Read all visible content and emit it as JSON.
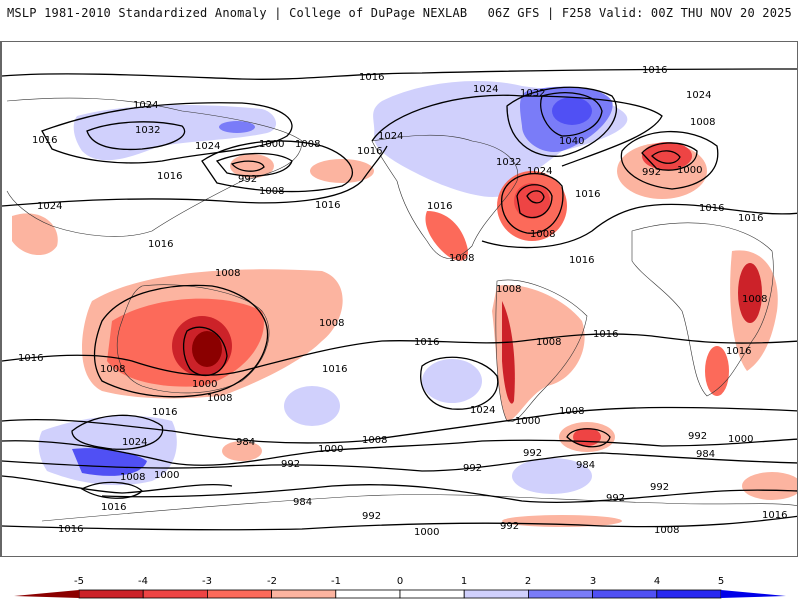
{
  "header": {
    "title_left": "MSLP 1981-2010 Standardized Anomaly | College of DuPage NEXLAB",
    "title_right": "06Z GFS | F258 Valid: 00Z THU NOV 20 2025"
  },
  "map": {
    "projection": "global cylindrical, Pacific-centered",
    "field_shaded": "MSLP standardized anomaly",
    "field_contoured": "MSLP (hPa)",
    "contour_labels": [
      {
        "text": "1016",
        "region": "north-pacific-arctic"
      },
      {
        "text": "1016",
        "region": "north-atlantic-arctic"
      },
      {
        "text": "1024",
        "region": "siberia-north"
      },
      {
        "text": "1032",
        "region": "siberia"
      },
      {
        "text": "1024",
        "region": "east-siberia"
      },
      {
        "text": "1016",
        "region": "west-russia"
      },
      {
        "text": "1016",
        "region": "japan"
      },
      {
        "text": "1024",
        "region": "tibet"
      },
      {
        "text": "1016",
        "region": "south-china-sea"
      },
      {
        "text": "1000",
        "region": "bering-sea"
      },
      {
        "text": "1008",
        "region": "aleutians"
      },
      {
        "text": "992",
        "region": "aleutian-low"
      },
      {
        "text": "1008",
        "region": "north-pacific"
      },
      {
        "text": "1016",
        "region": "gulf-of-alaska"
      },
      {
        "text": "1016",
        "region": "north-pacific-south"
      },
      {
        "text": "1024",
        "region": "canada-west"
      },
      {
        "text": "1024",
        "region": "canada-arctic"
      },
      {
        "text": "1032",
        "region": "hudson-bay"
      },
      {
        "text": "1032",
        "region": "greenland-west"
      },
      {
        "text": "1040",
        "region": "greenland"
      },
      {
        "text": "1024",
        "region": "norway-sea"
      },
      {
        "text": "1024",
        "region": "labrador"
      },
      {
        "text": "1016",
        "region": "usa-west"
      },
      {
        "text": "1008",
        "region": "western-atlantic-low"
      },
      {
        "text": "1016",
        "region": "mid-atlantic"
      },
      {
        "text": "1008",
        "region": "mexico"
      },
      {
        "text": "1008",
        "region": "north-sea"
      },
      {
        "text": "992",
        "region": "uk-low"
      },
      {
        "text": "1000",
        "region": "uk-low-outer"
      },
      {
        "text": "1016",
        "region": "mediterranean"
      },
      {
        "text": "1016",
        "region": "middle-east"
      },
      {
        "text": "1016",
        "region": "tropical-atlantic"
      },
      {
        "text": "1008",
        "region": "colombia"
      },
      {
        "text": "1008",
        "region": "brazil"
      },
      {
        "text": "1008",
        "region": "east-africa"
      },
      {
        "text": "1016",
        "region": "south-atlantic"
      },
      {
        "text": "1016",
        "region": "madagascar"
      },
      {
        "text": "1008",
        "region": "australia-north"
      },
      {
        "text": "1008",
        "region": "australia-west"
      },
      {
        "text": "1000",
        "region": "australia-heat-low"
      },
      {
        "text": "1008",
        "region": "australia-south"
      },
      {
        "text": "1016",
        "region": "indian-ocean-south"
      },
      {
        "text": "1016",
        "region": "great-australian-bight"
      },
      {
        "text": "1016",
        "region": "south-pacific-west"
      },
      {
        "text": "1008",
        "region": "south-pacific-central"
      },
      {
        "text": "1016",
        "region": "south-pacific-east"
      },
      {
        "text": "1024",
        "region": "chile-offshore"
      },
      {
        "text": "1000",
        "region": "patagonia"
      },
      {
        "text": "1008",
        "region": "south-atlantic-mid"
      },
      {
        "text": "992",
        "region": "drake-passage"
      },
      {
        "text": "984",
        "region": "south-atlantic-low"
      },
      {
        "text": "992",
        "region": "south-indian-ocean"
      },
      {
        "text": "1000",
        "region": "south-indian-east"
      },
      {
        "text": "984",
        "region": "southern-ocean-indian"
      },
      {
        "text": "992",
        "region": "antarctic-coast-east"
      },
      {
        "text": "1016",
        "region": "antarctica-east"
      },
      {
        "text": "1024",
        "region": "tasman-sea"
      },
      {
        "text": "1008",
        "region": "new-zealand-south"
      },
      {
        "text": "1000",
        "region": "southern-ocean-pacific-w"
      },
      {
        "text": "1016",
        "region": "south-of-australia"
      },
      {
        "text": "1016",
        "region": "antarctica-west"
      },
      {
        "text": "984",
        "region": "ross-sea-north"
      },
      {
        "text": "992",
        "region": "southern-ocean-pacific"
      },
      {
        "text": "1000",
        "region": "southern-ocean-mid"
      },
      {
        "text": "1008",
        "region": "amundsen-north"
      },
      {
        "text": "992",
        "region": "bellingshausen"
      },
      {
        "text": "984",
        "region": "ross-sea"
      },
      {
        "text": "992",
        "region": "marie-byrd-land"
      },
      {
        "text": "1000",
        "region": "antarctica-pacific"
      },
      {
        "text": "992",
        "region": "weddell-sea"
      },
      {
        "text": "1008",
        "region": "antarctica-atlantic"
      },
      {
        "text": "992",
        "region": "queen-maud-land"
      }
    ]
  },
  "colorbar": {
    "ticks": [
      "-5",
      "-4",
      "-3",
      "-2",
      "-1",
      "0",
      "1",
      "2",
      "3",
      "4",
      "5"
    ],
    "colors": {
      "lt_-5": "#8b0000",
      "-5_-4": "#cc2229",
      "-4_-3": "#ee4444",
      "-3_-2": "#fc6a5a",
      "-2_-1": "#fcb4a0",
      "-1_0": "#ffffff",
      "0_1": "#ffffff",
      "1_2": "#d0d0fc",
      "2_3": "#7a7cf8",
      "3_4": "#5050f4",
      "4_5": "#2828f0",
      "gt_5": "#0000e8"
    }
  }
}
